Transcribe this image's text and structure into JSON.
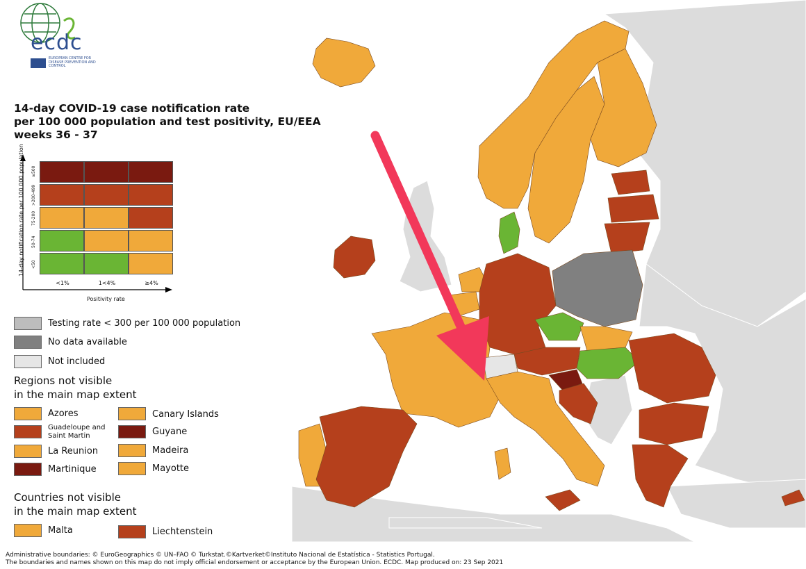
{
  "logo": {
    "text": "ecdc",
    "subtitle": "European Centre for Disease Prevention and Control"
  },
  "title": {
    "line1": "14-day COVID-19 case notification rate",
    "line2": "per 100 000 population and test positivity, EU/EEA",
    "line3": "weeks 36 - 37"
  },
  "matrix": {
    "y_label": "14-day notification rate per 100 000 population",
    "y_ticks": [
      "≥500",
      ">200-499",
      "75-200",
      "50-74",
      "<50"
    ],
    "x_label": "Positivity rate",
    "x_ticks": [
      "<1%",
      "1<4%",
      "≥4%"
    ],
    "rows": [
      [
        "#7a1a10",
        "#7a1a10",
        "#7a1a10"
      ],
      [
        "#b5401c",
        "#b5401c",
        "#b5401c"
      ],
      [
        "#f0a93a",
        "#f0a93a",
        "#b5401c"
      ],
      [
        "#6ab534",
        "#f0a93a",
        "#f0a93a"
      ],
      [
        "#6ab534",
        "#6ab534",
        "#f0a93a"
      ]
    ]
  },
  "status_legend": [
    {
      "label": "Testing rate < 300 per 100 000 population",
      "color": "#bdbdbd"
    },
    {
      "label": "No data available",
      "color": "#808080"
    },
    {
      "label": "Not included",
      "color": "#e6e6e6"
    }
  ],
  "regions_heading": {
    "line1": "Regions not visible",
    "line2": "in the main map extent"
  },
  "regions": [
    {
      "label": "Azores",
      "color": "#f0a93a"
    },
    {
      "label": "Guadeloupe and Saint Martin",
      "color": "#b5401c"
    },
    {
      "label": "La Reunion",
      "color": "#f0a93a"
    },
    {
      "label": "Martinique",
      "color": "#7a1a10"
    },
    {
      "label": "Canary Islands",
      "color": "#f0a93a"
    },
    {
      "label": "Guyane",
      "color": "#7a1a10"
    },
    {
      "label": "Madeira",
      "color": "#f0a93a"
    },
    {
      "label": "Mayotte",
      "color": "#f0a93a"
    }
  ],
  "countries_heading": {
    "line1": "Countries not visible",
    "line2": "in the main map extent"
  },
  "countries": [
    {
      "label": "Malta",
      "color": "#f0a93a"
    },
    {
      "label": "Liechtenstein",
      "color": "#b5401c"
    }
  ],
  "footer": {
    "line1": "Administrative boundaries: © EuroGeographics © UN–FAO © Turkstat.©Kartverket©Instituto Nacional de Estatística - Statistics Portugal.",
    "line2": "The boundaries and names shown on this map do not imply official endorsement or acceptance by the European Union. ECDC. Map produced on: 23 Sep 2021"
  },
  "map": {
    "colors": {
      "sea": "#ffffff",
      "non_eu": "#dcdcdc",
      "orange": "#f0a93a",
      "red": "#b5401c",
      "darkred": "#7a1a10",
      "green": "#6ab534",
      "nodata": "#808080",
      "excluded": "#e6e6e6",
      "arrow": "#f2385a"
    },
    "countries": [
      {
        "name": "Iceland",
        "category": "orange"
      },
      {
        "name": "Ireland",
        "category": "red"
      },
      {
        "name": "Portugal",
        "category": "orange"
      },
      {
        "name": "Spain",
        "category": "red"
      },
      {
        "name": "France",
        "category": "orange"
      },
      {
        "name": "Belgium",
        "category": "orange"
      },
      {
        "name": "Netherlands",
        "category": "orange"
      },
      {
        "name": "Germany",
        "category": "red"
      },
      {
        "name": "Denmark",
        "category": "green"
      },
      {
        "name": "Norway",
        "category": "orange"
      },
      {
        "name": "Sweden",
        "category": "orange"
      },
      {
        "name": "Finland",
        "category": "orange"
      },
      {
        "name": "Estonia",
        "category": "red"
      },
      {
        "name": "Latvia",
        "category": "red"
      },
      {
        "name": "Lithuania",
        "category": "red"
      },
      {
        "name": "Poland",
        "category": "nodata"
      },
      {
        "name": "Czechia",
        "category": "green"
      },
      {
        "name": "Slovakia",
        "category": "orange"
      },
      {
        "name": "Austria",
        "category": "red"
      },
      {
        "name": "Hungary",
        "category": "green"
      },
      {
        "name": "Slovenia",
        "category": "darkred"
      },
      {
        "name": "Croatia",
        "category": "red"
      },
      {
        "name": "Italy",
        "category": "orange"
      },
      {
        "name": "Romania",
        "category": "red"
      },
      {
        "name": "Bulgaria",
        "category": "red"
      },
      {
        "name": "Greece",
        "category": "red"
      },
      {
        "name": "Cyprus",
        "category": "red"
      },
      {
        "name": "Switzerland",
        "category": "excluded"
      }
    ]
  }
}
